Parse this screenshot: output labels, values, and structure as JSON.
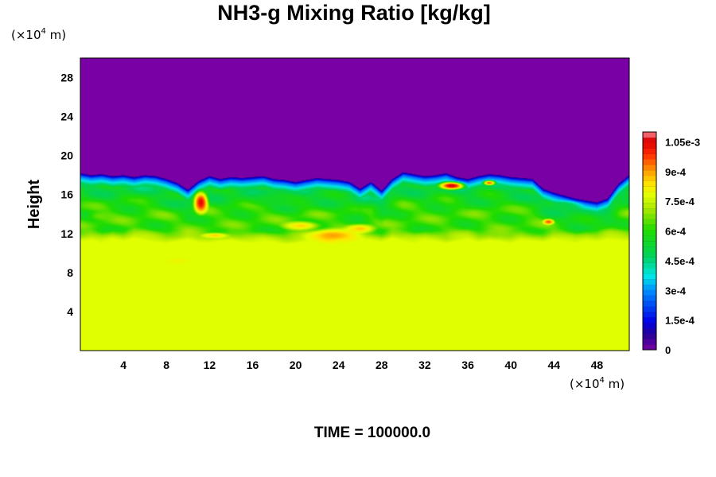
{
  "chart_data": {
    "type": "heatmap",
    "title": "NH3-g Mixing Ratio [kg/kg]",
    "ylabel": "Height",
    "x_unit": {
      "prefix": "(×10",
      "exponent": "4",
      "suffix": " m)"
    },
    "y_unit": {
      "prefix": "(×10",
      "exponent": "4",
      "suffix": " m)"
    },
    "xlim": [
      0,
      51
    ],
    "ylim": [
      0,
      30
    ],
    "xticks": [
      4,
      8,
      12,
      16,
      20,
      24,
      28,
      32,
      36,
      40,
      44,
      48
    ],
    "yticks": [
      4,
      8,
      12,
      16,
      20,
      24,
      28
    ],
    "colorbar": {
      "range": [
        0,
        0.0011
      ],
      "tick_values": [
        0,
        0.00015,
        0.0003,
        0.00045,
        0.0006,
        0.00075,
        0.0009,
        0.00105
      ],
      "tick_labels": [
        "0",
        "1.5e-4",
        "3e-4",
        "4.5e-4",
        "6e-4",
        "7.5e-4",
        "9e-4",
        "1.05e-3"
      ]
    },
    "field": {
      "lower_value": 0.00078,
      "upper_value": 0.0,
      "interface_height": [
        18.2,
        18.0,
        18.1,
        17.9,
        18.0,
        17.8,
        18.0,
        17.9,
        17.6,
        17.2,
        16.5,
        17.4,
        17.9,
        17.6,
        17.8,
        17.7,
        17.8,
        17.9,
        17.6,
        17.5,
        17.3,
        17.5,
        17.7,
        17.6,
        17.5,
        17.3,
        16.6,
        17.3,
        16.4,
        17.6,
        18.3,
        18.1,
        17.9,
        18.0,
        18.2,
        17.8,
        17.6,
        17.9,
        18.1,
        18.0,
        17.8,
        17.7,
        17.6,
        16.6,
        16.2,
        15.9,
        15.6,
        15.4,
        15.2,
        15.6,
        17.1,
        18.0
      ],
      "mixed_layer_bottom": [
        11.2,
        11.3,
        11.0,
        11.4,
        11.2,
        11.5,
        11.3,
        11.1,
        11.0,
        11.2,
        11.4,
        11.1,
        11.0,
        11.2,
        11.3,
        11.1,
        11.0,
        11.2,
        11.1,
        10.9,
        11.0,
        11.2,
        11.1,
        11.3,
        11.0,
        11.2,
        11.4,
        11.3,
        11.1,
        11.5,
        11.2,
        11.0,
        11.3,
        11.2,
        11.0,
        11.2,
        11.4,
        11.1,
        11.3,
        11.2,
        11.0,
        11.3,
        11.2,
        11.1,
        11.4,
        11.2,
        11.0,
        11.3,
        11.2,
        11.4,
        11.3,
        11.2
      ],
      "blobs": [
        {
          "x": 11.2,
          "y": 15.2,
          "rx": 0.9,
          "ry": 1.5,
          "value": 0.00104
        },
        {
          "x": 34.5,
          "y": 16.9,
          "rx": 1.6,
          "ry": 0.55,
          "value": 0.00106
        },
        {
          "x": 38.0,
          "y": 17.2,
          "rx": 0.8,
          "ry": 0.35,
          "value": 0.00095
        },
        {
          "x": 43.5,
          "y": 13.2,
          "rx": 0.7,
          "ry": 0.4,
          "value": 0.00096
        },
        {
          "x": 23.5,
          "y": 11.8,
          "rx": 3.2,
          "ry": 0.9,
          "value": 0.0009
        },
        {
          "x": 20.5,
          "y": 12.8,
          "rx": 2.2,
          "ry": 0.6,
          "value": 0.00085
        },
        {
          "x": 26.0,
          "y": 12.5,
          "rx": 1.8,
          "ry": 0.6,
          "value": 0.00086
        },
        {
          "x": 12.5,
          "y": 11.8,
          "rx": 1.6,
          "ry": 0.35,
          "value": 0.00085
        },
        {
          "x": 9.0,
          "y": 9.2,
          "rx": 1.5,
          "ry": 0.4,
          "value": 0.0008
        },
        {
          "x": 2.0,
          "y": 13.8,
          "rx": 1.6,
          "ry": 0.6,
          "value": 0.00066
        },
        {
          "x": 45.0,
          "y": 14.8,
          "rx": 2.0,
          "ry": 0.7,
          "value": 0.0005
        },
        {
          "x": 18.0,
          "y": 15.5,
          "rx": 3.0,
          "ry": 0.9,
          "value": 0.00055
        }
      ]
    }
  },
  "footer": {
    "time_label": "TIME = 100000.0"
  }
}
